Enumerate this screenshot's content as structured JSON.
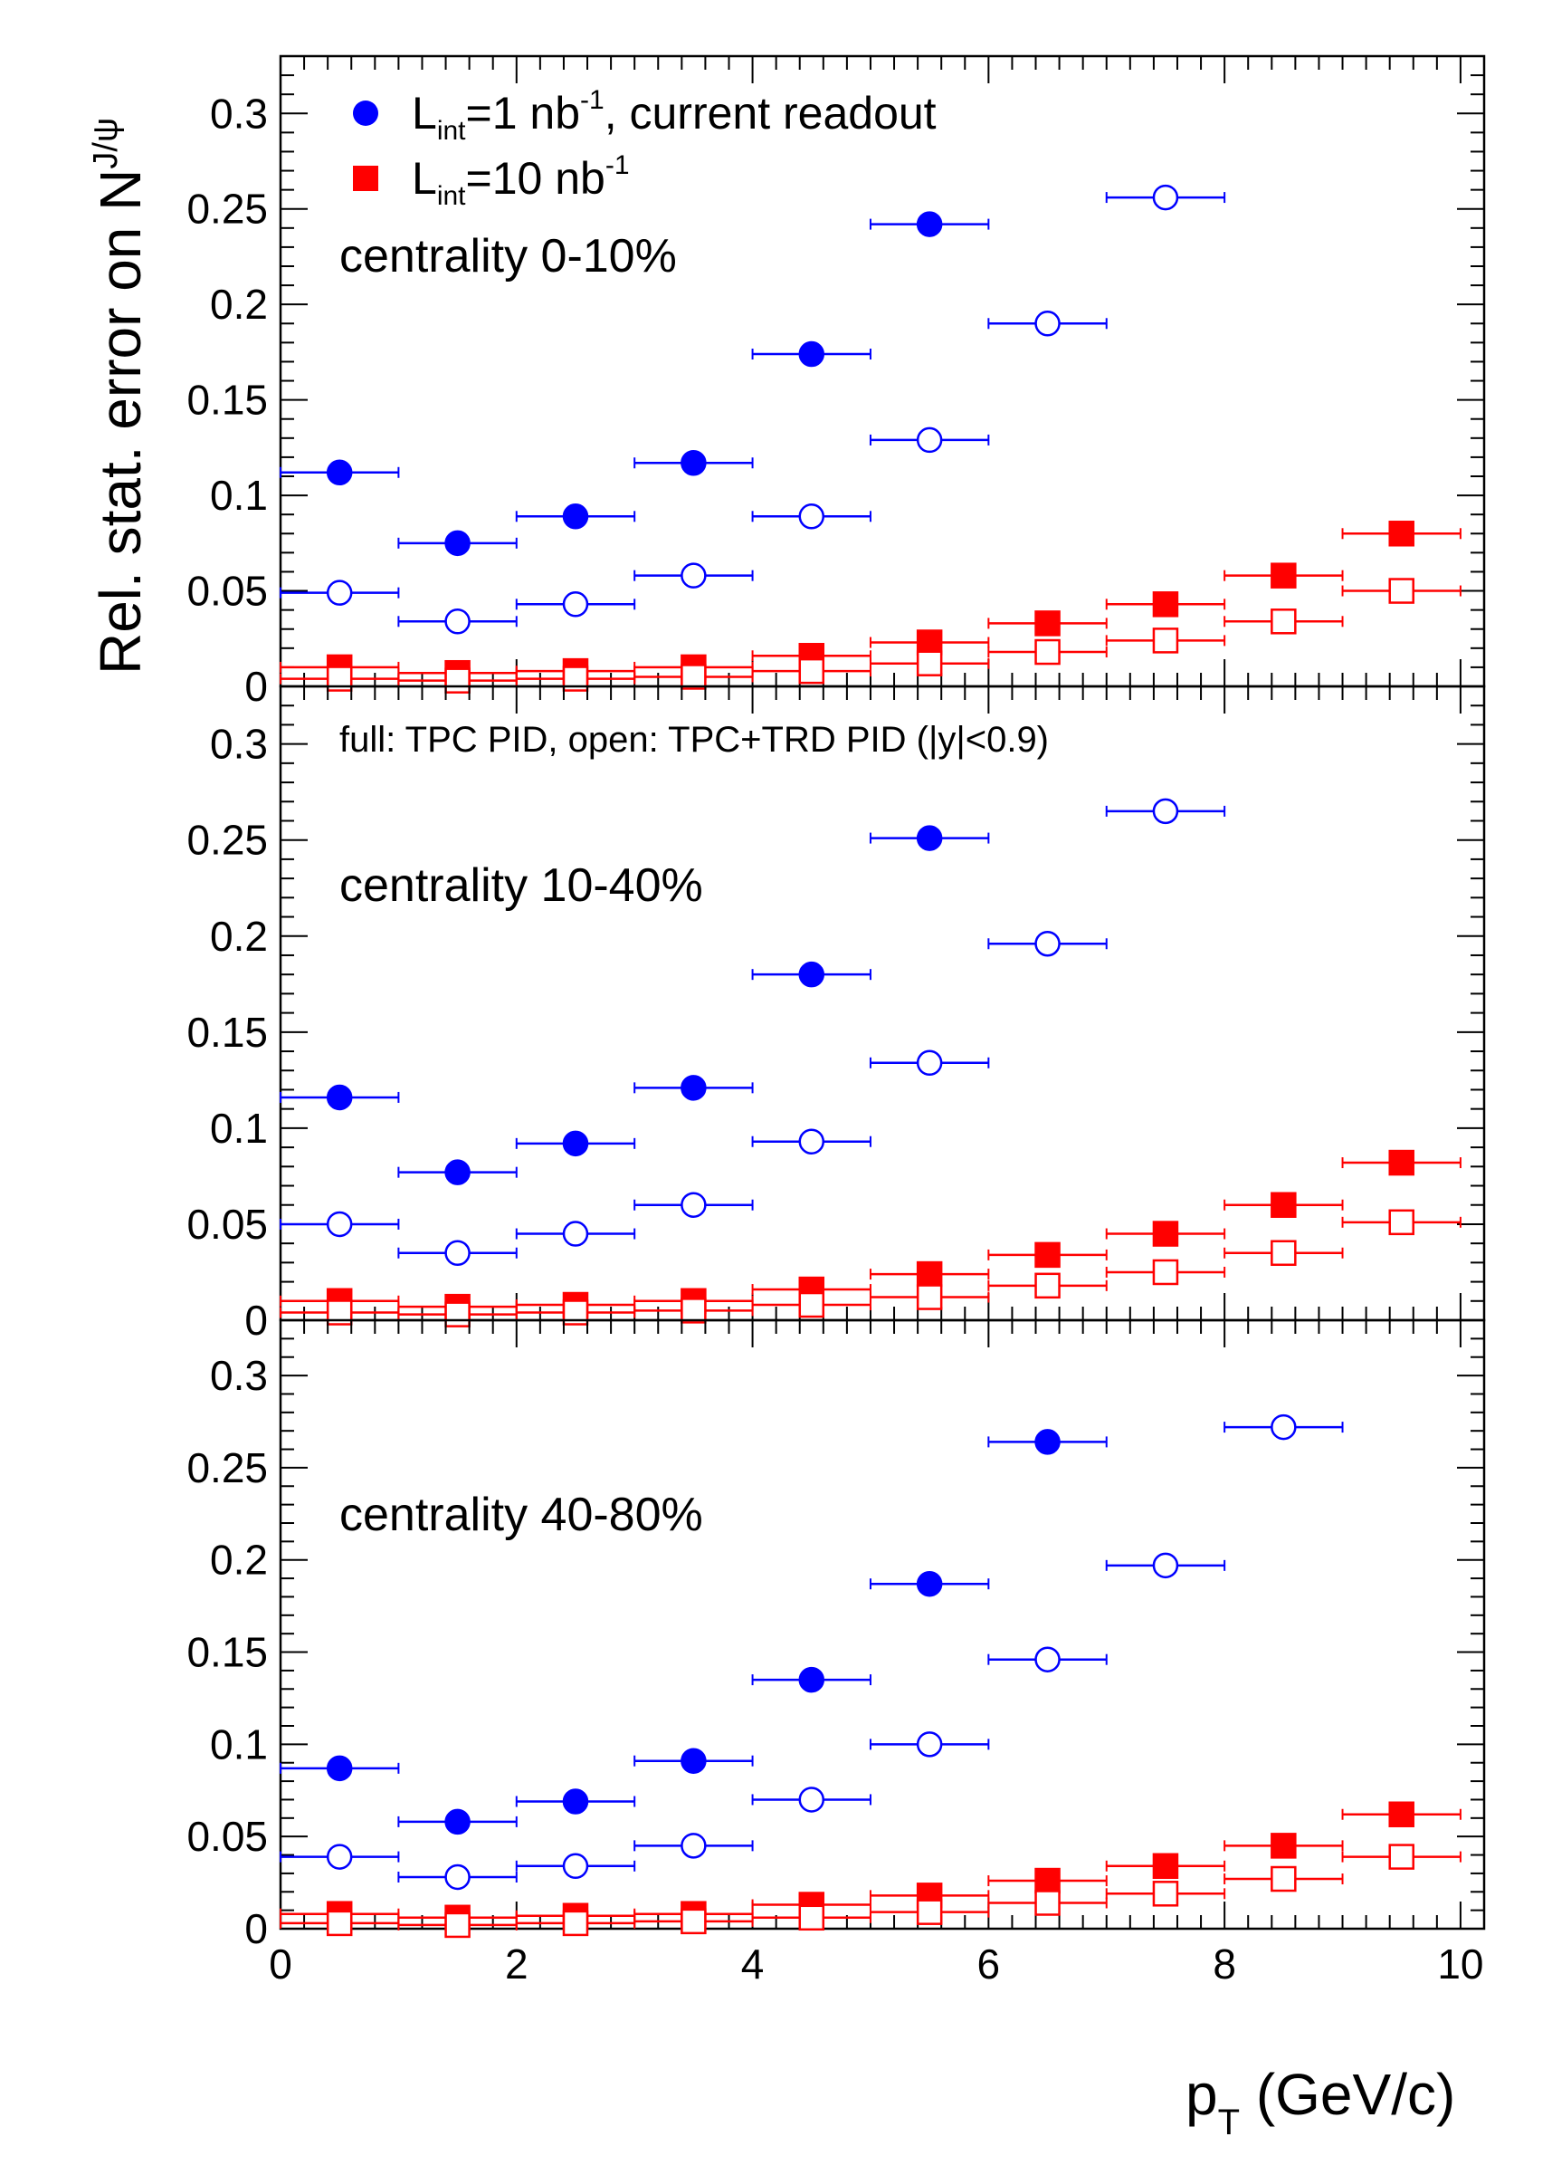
{
  "chart_data": {
    "type": "scatter",
    "x_bins": [
      [
        0,
        1
      ],
      [
        1,
        2
      ],
      [
        2,
        3
      ],
      [
        3,
        4
      ],
      [
        4,
        5
      ],
      [
        5,
        6
      ],
      [
        6,
        7
      ],
      [
        7,
        8
      ],
      [
        8,
        9
      ],
      [
        9,
        10
      ]
    ],
    "x_centers": [
      0.5,
      1.5,
      2.5,
      3.5,
      4.5,
      5.5,
      6.5,
      7.5,
      8.5,
      9.5
    ],
    "xlim": [
      0,
      10.2
    ],
    "ylim": [
      0,
      0.33
    ],
    "x_ticks": [
      0,
      2,
      4,
      6,
      8,
      10
    ],
    "x_tick_labels": [
      "0",
      "2",
      "4",
      "6",
      "8",
      "10"
    ],
    "y_ticks": [
      0,
      0.05,
      0.1,
      0.15,
      0.2,
      0.25,
      0.3
    ],
    "y_tick_labels": [
      "0",
      "0.05",
      "0.1",
      "0.15",
      "0.2",
      "0.25",
      "0.3"
    ],
    "xlabel": {
      "main": "p",
      "sub": "T",
      "rest": " (GeV/c)"
    },
    "ylabel": {
      "main": "Rel. stat. error on N",
      "sup": "J/ψ"
    },
    "legend": [
      {
        "series": "lint1",
        "main": "L",
        "sub": "int",
        "mid": "=1 nb",
        "sup": "-1",
        "tail": ", current readout",
        "color": "#0000ff",
        "marker": "circle"
      },
      {
        "series": "lint10",
        "main": "L",
        "sub": "int",
        "mid": "=10 nb",
        "sup": "-1",
        "tail": "",
        "color": "#ff0000",
        "marker": "square"
      }
    ],
    "note": "full: TPC PID, open: TPC+TRD PID (|y|<0.9)",
    "panels": [
      {
        "label": "centrality 0-10%",
        "series": [
          {
            "name": "Lint=1 nb-1, TPC PID",
            "color": "#0000ff",
            "marker": "circle",
            "filled": true,
            "x_from": 0,
            "values": [
              0.112,
              0.075,
              0.089,
              0.117,
              0.174,
              0.242
            ]
          },
          {
            "name": "Lint=1 nb-1, TPC+TRD PID",
            "color": "#0000ff",
            "marker": "circle",
            "filled": false,
            "x_from": 0,
            "values": [
              0.049,
              0.034,
              0.043,
              0.058,
              0.089,
              0.129,
              0.19,
              0.256
            ]
          },
          {
            "name": "Lint=10 nb-1, TPC PID",
            "color": "#ff0000",
            "marker": "square",
            "filled": true,
            "x_from": 0,
            "values": [
              0.01,
              0.007,
              0.008,
              0.01,
              0.016,
              0.023,
              0.033,
              0.043,
              0.058,
              0.08
            ]
          },
          {
            "name": "Lint=10 nb-1, TPC+TRD PID",
            "color": "#ff0000",
            "marker": "square",
            "filled": false,
            "x_from": 0,
            "values": [
              0.004,
              0.003,
              0.004,
              0.005,
              0.008,
              0.012,
              0.018,
              0.024,
              0.034,
              0.05
            ]
          }
        ]
      },
      {
        "label": "centrality 10-40%",
        "series": [
          {
            "name": "Lint=1 nb-1, TPC PID",
            "color": "#0000ff",
            "marker": "circle",
            "filled": true,
            "x_from": 0,
            "values": [
              0.116,
              0.077,
              0.092,
              0.121,
              0.18,
              0.251
            ]
          },
          {
            "name": "Lint=1 nb-1, TPC+TRD PID",
            "color": "#0000ff",
            "marker": "circle",
            "filled": false,
            "x_from": 0,
            "values": [
              0.05,
              0.035,
              0.045,
              0.06,
              0.093,
              0.134,
              0.196,
              0.265
            ]
          },
          {
            "name": "Lint=10 nb-1, TPC PID",
            "color": "#ff0000",
            "marker": "square",
            "filled": true,
            "x_from": 0,
            "values": [
              0.01,
              0.007,
              0.008,
              0.01,
              0.016,
              0.024,
              0.034,
              0.045,
              0.06,
              0.082
            ]
          },
          {
            "name": "Lint=10 nb-1, TPC+TRD PID",
            "color": "#ff0000",
            "marker": "square",
            "filled": false,
            "x_from": 0,
            "values": [
              0.004,
              0.003,
              0.004,
              0.005,
              0.008,
              0.012,
              0.018,
              0.025,
              0.035,
              0.051
            ]
          }
        ]
      },
      {
        "label": "centrality 40-80%",
        "series": [
          {
            "name": "Lint=1 nb-1, TPC PID",
            "color": "#0000ff",
            "marker": "circle",
            "filled": true,
            "x_from": 0,
            "values": [
              0.087,
              0.058,
              0.069,
              0.091,
              0.135,
              0.187,
              0.264
            ]
          },
          {
            "name": "Lint=1 nb-1, TPC+TRD PID",
            "color": "#0000ff",
            "marker": "circle",
            "filled": false,
            "x_from": 0,
            "values": [
              0.039,
              0.028,
              0.034,
              0.045,
              0.07,
              0.1,
              0.146,
              0.197,
              0.272
            ]
          },
          {
            "name": "Lint=10 nb-1, TPC PID",
            "color": "#ff0000",
            "marker": "square",
            "filled": true,
            "x_from": 0,
            "values": [
              0.008,
              0.006,
              0.007,
              0.008,
              0.013,
              0.018,
              0.026,
              0.034,
              0.045,
              0.062
            ]
          },
          {
            "name": "Lint=10 nb-1, TPC+TRD PID",
            "color": "#ff0000",
            "marker": "square",
            "filled": false,
            "x_from": 0,
            "values": [
              0.003,
              0.002,
              0.003,
              0.004,
              0.006,
              0.009,
              0.014,
              0.019,
              0.027,
              0.039
            ]
          }
        ]
      }
    ]
  }
}
